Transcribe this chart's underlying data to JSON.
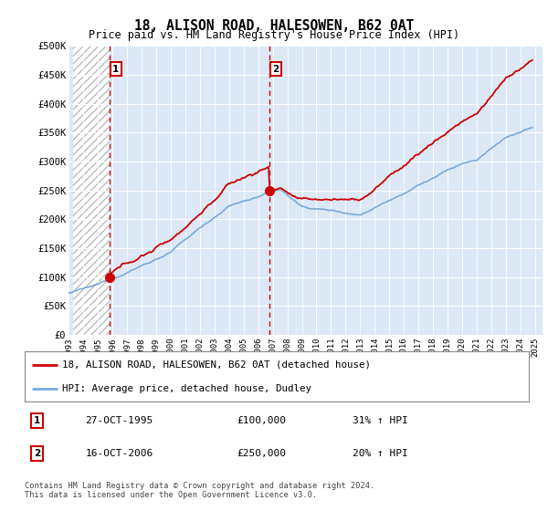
{
  "title": "18, ALISON ROAD, HALESOWEN, B62 0AT",
  "subtitle": "Price paid vs. HM Land Registry's House Price Index (HPI)",
  "ylim": [
    0,
    500000
  ],
  "yticks": [
    0,
    50000,
    100000,
    150000,
    200000,
    250000,
    300000,
    350000,
    400000,
    450000,
    500000
  ],
  "ytick_labels": [
    "£0",
    "£50K",
    "£100K",
    "£150K",
    "£200K",
    "£250K",
    "£300K",
    "£350K",
    "£400K",
    "£450K",
    "£500K"
  ],
  "xlim_start": 1993.3,
  "xlim_end": 2025.5,
  "sale1_date": 1995.82,
  "sale1_price": 100000,
  "sale2_date": 2006.79,
  "sale2_price": 250000,
  "sale1_annotation": "27-OCT-1995",
  "sale1_price_str": "£100,000",
  "sale1_hpi": "31% ↑ HPI",
  "sale2_annotation": "16-OCT-2006",
  "sale2_price_str": "£250,000",
  "sale2_hpi": "20% ↑ HPI",
  "red_color": "#cc0000",
  "blue_color": "#7aaadd",
  "background_color": "#ffffff",
  "plot_bg_color": "#dce8f5",
  "grid_color": "#ffffff",
  "legend1": "18, ALISON ROAD, HALESOWEN, B62 0AT (detached house)",
  "legend2": "HPI: Average price, detached house, Dudley",
  "footnote": "Contains HM Land Registry data © Crown copyright and database right 2024.\nThis data is licensed under the Open Government Licence v3.0.",
  "xticks": [
    1993,
    1994,
    1995,
    1996,
    1997,
    1998,
    1999,
    2000,
    2001,
    2002,
    2003,
    2004,
    2005,
    2006,
    2007,
    2008,
    2009,
    2010,
    2011,
    2012,
    2013,
    2014,
    2015,
    2016,
    2017,
    2018,
    2019,
    2020,
    2021,
    2022,
    2023,
    2024,
    2025
  ]
}
